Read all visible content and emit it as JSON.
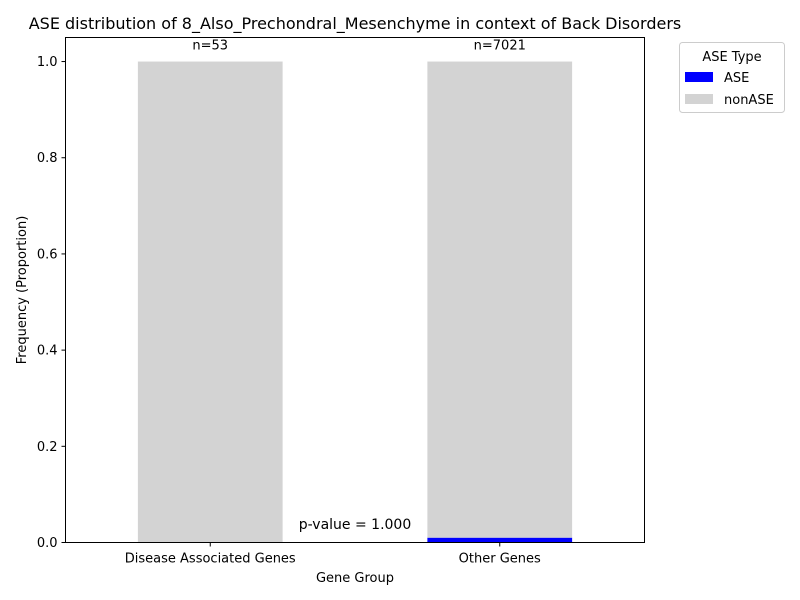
{
  "chart_data": {
    "type": "bar",
    "stacked": true,
    "title": "ASE distribution of 8_Also_Prechondral_Mesenchyme in context of Back Disorders",
    "xlabel": "Gene Group",
    "ylabel": "Frequency (Proportion)",
    "ylim": [
      0,
      1.05
    ],
    "yticks": [
      "0.0",
      "0.2",
      "0.4",
      "0.6",
      "0.8",
      "1.0"
    ],
    "categories": [
      "Disease Associated Genes",
      "Other Genes"
    ],
    "counts": [
      "n=53",
      "n=7021"
    ],
    "series": [
      {
        "name": "ASE",
        "color": "#0000ff",
        "values": [
          0.0,
          0.01
        ]
      },
      {
        "name": "nonASE",
        "color": "#d3d3d3",
        "values": [
          1.0,
          0.99
        ]
      }
    ],
    "legend": {
      "title": "ASE Type",
      "placement": "outside-top-right"
    },
    "annotation": "p-value = 1.000",
    "grid": false
  }
}
